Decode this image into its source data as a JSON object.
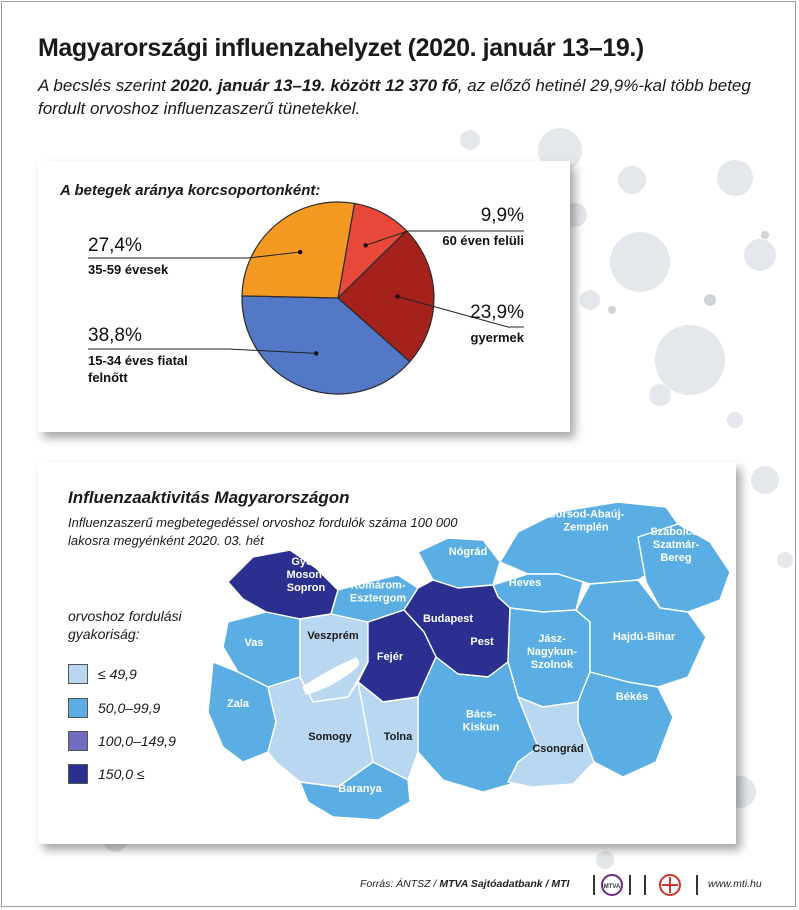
{
  "header": {
    "title": "Magyarországi influenzahelyzet (2020. január 13–19.)",
    "subtitle_pre": "A becslés szerint ",
    "subtitle_bold": "2020. január 13–19. között 12 370 fő",
    "subtitle_post": ", az előző hetinél 29,9%-kal több beteg fordult orvoshoz influenzaszerű tünetekkel."
  },
  "chart_data": [
    {
      "type": "pie",
      "title": "A betegek aránya korcsoportonként:",
      "slices": [
        {
          "value": 9.9,
          "label": "9,9%",
          "name": "60 éven felüli",
          "color": "#e8483a"
        },
        {
          "value": 23.9,
          "label": "23,9%",
          "name": "gyermek",
          "color": "#a5211c"
        },
        {
          "value": 38.8,
          "label": "38,8%",
          "name": "15-34 éves fiatal felnőtt",
          "color": "#5278c6"
        },
        {
          "value": 27.4,
          "label": "27,4%",
          "name": "35-59 évesek",
          "color": "#f49a23"
        }
      ]
    },
    {
      "type": "choropleth",
      "title": "Influenzaaktivitás Magyarországon",
      "subtitle": "Influenzaszerű megbetegedéssel orvoshoz fordulók száma 100 000 lakosra megyénként 2020. 03. hét",
      "legend_title": "orvoshoz fordulási gyakoriság:",
      "legend": [
        {
          "label": "≤ 49,9",
          "color": "#b9d7f0"
        },
        {
          "label": "50,0–99,9",
          "color": "#5aaee3"
        },
        {
          "label": "100,0–149,9",
          "color": "#6f6cc2"
        },
        {
          "label": "150,0 ≤",
          "color": "#2a2f90"
        }
      ],
      "regions": [
        {
          "name": "Győr-\nMoson-\nSopron",
          "class": 3
        },
        {
          "name": "Komárom-\nEsztergom",
          "class": 1
        },
        {
          "name": "Nógrád",
          "class": 1
        },
        {
          "name": "Borsod-Abaúj-\nZemplén",
          "class": 1
        },
        {
          "name": "Szabolcs-\nSzatmár-\nBereg",
          "class": 1
        },
        {
          "name": "Heves",
          "class": 1
        },
        {
          "name": "Vas",
          "class": 1
        },
        {
          "name": "Veszprém",
          "class": 0
        },
        {
          "name": "Budapest",
          "class": 3
        },
        {
          "name": "Pest",
          "class": 3
        },
        {
          "name": "Fejér",
          "class": 3
        },
        {
          "name": "Jász-\nNagykun-\nSzolnok",
          "class": 1
        },
        {
          "name": "Hajdú-Bihar",
          "class": 1
        },
        {
          "name": "Zala",
          "class": 1
        },
        {
          "name": "Békés",
          "class": 1
        },
        {
          "name": "Bács-\nKiskun",
          "class": 1
        },
        {
          "name": "Somogy",
          "class": 0
        },
        {
          "name": "Tolna",
          "class": 0
        },
        {
          "name": "Csongrád",
          "class": 0
        },
        {
          "name": "Baranya",
          "class": 1
        }
      ]
    }
  ],
  "footer": {
    "source_pre": "Forrás: ÁNTSZ / ",
    "source_bold": "MTVA Sajtóadatbank / MTI",
    "logo1": "MTVA",
    "url": "www.mti.hu"
  },
  "colors": {
    "deco": "#e3e6ea",
    "shadow": "#000000"
  }
}
